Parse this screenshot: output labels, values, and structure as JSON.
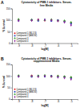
{
  "chart_data": [
    {
      "type": "scatter",
      "annotations": [
        "A"
      ],
      "title": [
        "Cytotoxicity of PME-1 inhibitors- Serum-",
        "free Media"
      ],
      "x_label": "log[M]",
      "y_label": "% Survival",
      "x": [
        -9,
        -8,
        -7.5,
        -7,
        -6.5,
        -6,
        -5.5,
        -5
      ],
      "xlim": [
        -9.5,
        -4.5
      ],
      "xticks": [
        -9,
        -8,
        -7,
        -6,
        -5
      ],
      "ylim": [
        0,
        150
      ],
      "yticks": [
        0,
        50,
        100,
        150
      ],
      "legend": "lower left",
      "series": [
        {
          "name": "Compound 1 (ML174)",
          "color": "#e41a1c",
          "marker": "circle",
          "values": [
            101,
            99,
            102,
            98,
            100,
            97,
            95,
            88
          ]
        },
        {
          "name": "Compound 2 (AMZ30)",
          "color": "#1f3fbf",
          "marker": "square",
          "values": [
            98,
            100,
            97,
            101,
            96,
            99,
            93,
            85
          ]
        },
        {
          "name": "Compound 3",
          "color": "#2ca02c",
          "marker": "triangle",
          "values": [
            103,
            101,
            100,
            99,
            102,
            98,
            97,
            90
          ]
        },
        {
          "name": "Compound 4",
          "color": "#8e2c9e",
          "marker": "diamond",
          "values": [
            97,
            98,
            101,
            100,
            99,
            96,
            90,
            78
          ]
        }
      ]
    },
    {
      "type": "scatter",
      "annotations": [
        "B"
      ],
      "title": [
        "Cytotoxicity of PME-1 inhibitors- Serum-",
        "supplemented Media"
      ],
      "x_label": "log[M]",
      "y_label": "% Survival",
      "x": [
        -9,
        -8,
        -7.5,
        -7,
        -6.5,
        -6,
        -5.5,
        -5
      ],
      "xlim": [
        -9.5,
        -4.5
      ],
      "xticks": [
        -9,
        -8,
        -7,
        -6,
        -5
      ],
      "ylim": [
        0,
        150
      ],
      "yticks": [
        0,
        50,
        100,
        150
      ],
      "legend": "lower left",
      "series": [
        {
          "name": "Compound 1 (ML174)",
          "color": "#e41a1c",
          "marker": "circle",
          "values": [
            100,
            102,
            99,
            101,
            98,
            100,
            97,
            94
          ]
        },
        {
          "name": "Compound 2 (AMZ30)",
          "color": "#1f3fbf",
          "marker": "square",
          "values": [
            99,
            97,
            100,
            98,
            101,
            97,
            96,
            91
          ]
        },
        {
          "name": "Compound 3",
          "color": "#2ca02c",
          "marker": "triangle",
          "values": [
            102,
            100,
            101,
            103,
            99,
            100,
            98,
            95
          ]
        },
        {
          "name": "Compound 4",
          "color": "#8e2c9e",
          "marker": "diamond",
          "values": [
            98,
            99,
            97,
            100,
            98,
            95,
            92,
            86
          ]
        }
      ]
    }
  ]
}
